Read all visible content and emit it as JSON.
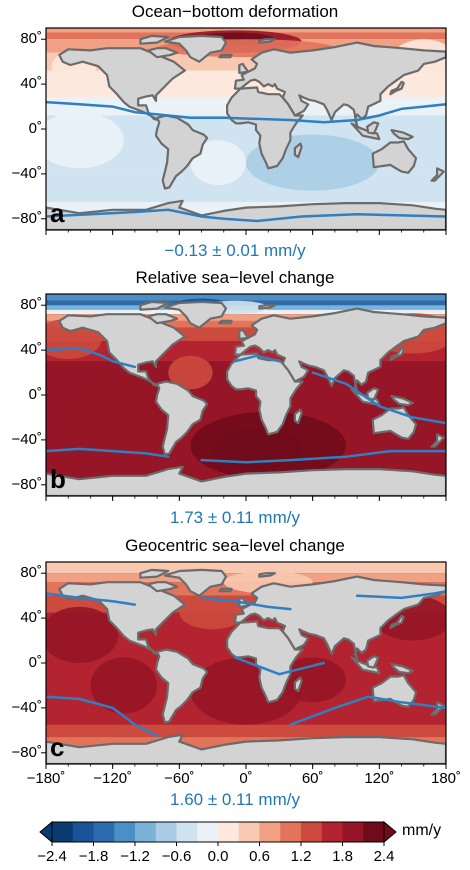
{
  "panels": [
    {
      "letter": "a",
      "title": "Ocean−bottom deformation",
      "caption": "−0.13 ± 0.01 mm/y"
    },
    {
      "letter": "b",
      "title": "Relative sea−level change",
      "caption": "1.73 ± 0.11 mm/y"
    },
    {
      "letter": "c",
      "title": "Geocentric sea−level change",
      "caption": "1.60 ± 0.11 mm/y"
    }
  ],
  "lat_ticks": [
    "80˚",
    "40˚",
    "0˚",
    "−40˚",
    "−80˚"
  ],
  "lon_ticks": [
    "−180˚",
    "−120˚",
    "−60˚",
    "0˚",
    "60˚",
    "120˚",
    "180˚"
  ],
  "colorbar": {
    "unit": "mm/y",
    "tick_labels": [
      "−2.4",
      "−1.8",
      "−1.2",
      "−0.6",
      "0.0",
      "0.6",
      "1.2",
      "1.8",
      "2.4"
    ],
    "colors": [
      "#0b3a70",
      "#1a5496",
      "#2b6cb0",
      "#4a8fc6",
      "#7ab2d8",
      "#a9cde6",
      "#cfe3f0",
      "#eaf2f8",
      "#fde8dd",
      "#f8c8b0",
      "#f0a184",
      "#e2745c",
      "#cc4a3e",
      "#b32430",
      "#961526",
      "#700b1c"
    ]
  },
  "colors": {
    "land": "#d3d3d3",
    "coast": "#6b6b6b",
    "contour": "#2f7fc1",
    "caption": "#1f77b4"
  }
}
